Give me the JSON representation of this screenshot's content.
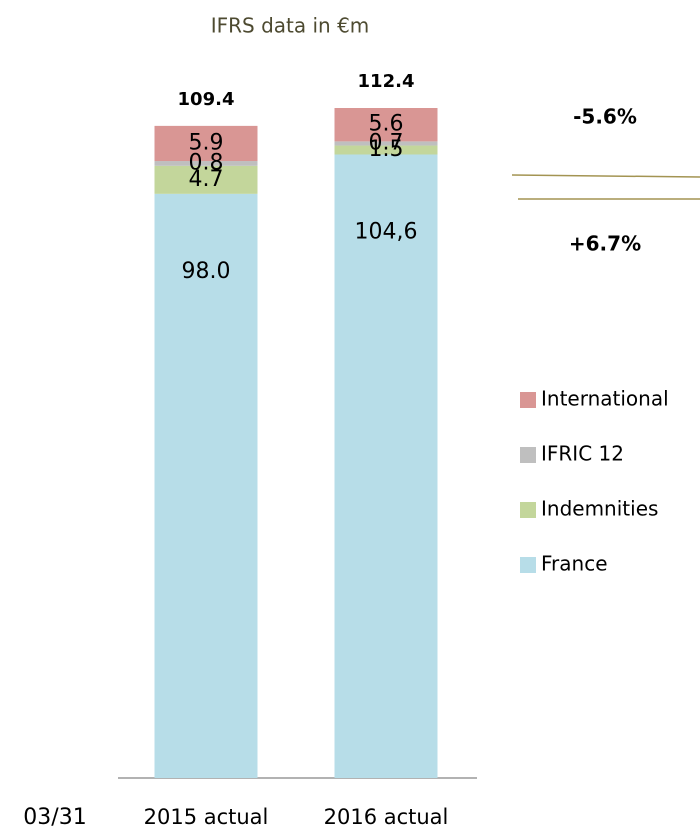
{
  "chart_data": {
    "type": "stacked_bar",
    "title": "IFRS data in €m",
    "page_label": "03/31",
    "categories": [
      "2015 actual",
      "2016 actual"
    ],
    "totals": [
      109.4,
      112.4
    ],
    "annotations": [
      "-5.6%",
      "+6.7%"
    ],
    "series": [
      {
        "name": "France",
        "color": "#b7dde8",
        "values": [
          98.0,
          104.6
        ],
        "value_labels": [
          "98.0",
          "104,6"
        ]
      },
      {
        "name": "Indemnities",
        "color": "#c3d69b",
        "values": [
          4.7,
          1.5
        ]
      },
      {
        "name": "IFRIC 12",
        "color": "#bfbfbf",
        "values": [
          0.8,
          0.7
        ]
      },
      {
        "name": "International",
        "color": "#d99694",
        "values": [
          5.9,
          5.6
        ]
      }
    ]
  }
}
